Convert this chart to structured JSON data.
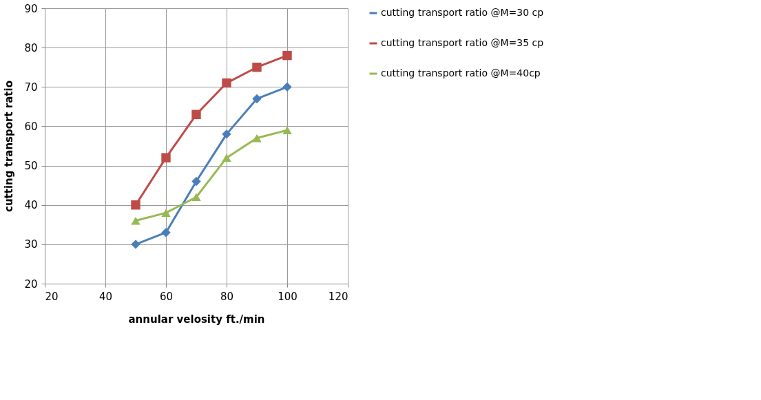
{
  "chart_data": {
    "type": "line",
    "xlabel": "annular velosity ft./min",
    "ylabel": "cutting transport ratio",
    "x": [
      50,
      60,
      70,
      80,
      90,
      100
    ],
    "series": [
      {
        "name": "cutting transport ratio @M=30 cp",
        "color": "#4a7ebb",
        "marker": "diamond",
        "values": [
          30,
          33,
          46,
          58,
          67,
          70
        ]
      },
      {
        "name": "cutting transport ratio @M=35 cp",
        "color": "#be4b48",
        "marker": "square",
        "values": [
          40,
          52,
          63,
          71,
          75,
          78
        ]
      },
      {
        "name": "cutting transport ratio @M=40cp",
        "color": "#98b954",
        "marker": "triangle",
        "values": [
          36,
          38,
          42,
          52,
          57,
          59
        ]
      }
    ],
    "xlim": [
      20,
      120
    ],
    "xticks": [
      20,
      40,
      60,
      80,
      100,
      120
    ],
    "ylim": [
      20,
      90
    ],
    "yticks": [
      20,
      30,
      40,
      50,
      60,
      70,
      80,
      90
    ],
    "grid": true,
    "legend": "right",
    "line_style": "solid"
  }
}
